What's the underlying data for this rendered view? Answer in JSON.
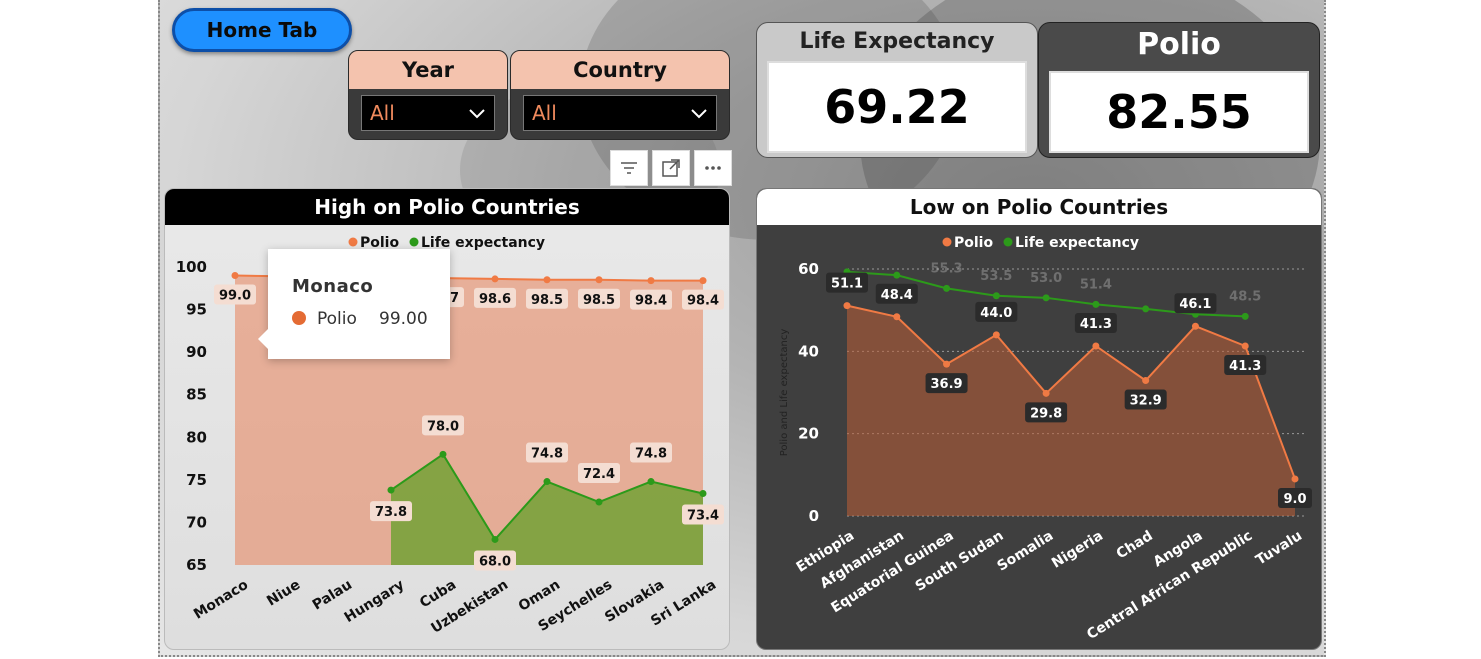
{
  "home_button": "Home Tab",
  "slicers": {
    "year": {
      "label": "Year",
      "value": "All"
    },
    "country": {
      "label": "Country",
      "value": "All"
    }
  },
  "kpis": {
    "life_expectancy": {
      "label": "Life Expectancy",
      "value": "69.22"
    },
    "polio": {
      "label": "Polio",
      "value": "82.55"
    }
  },
  "icons": [
    "filter-icon",
    "focus-mode-icon",
    "more-options-icon"
  ],
  "colors": {
    "polio": "#f07a44",
    "life_expectancy": "#2c9a1a"
  },
  "chart_data": [
    {
      "type": "area",
      "title": "High on Polio Countries",
      "legend": [
        "Polio",
        "Life expectancy"
      ],
      "legend_position": "top-center",
      "categories": [
        "Monaco",
        "Niue",
        "Palau",
        "Hungary",
        "Cuba",
        "Uzbekistan",
        "Oman",
        "Seychelles",
        "Slovakia",
        "Sri Lanka"
      ],
      "series": [
        {
          "name": "Polio",
          "values": [
            99.0,
            98.9,
            98.8,
            98.7,
            98.7,
            98.6,
            98.5,
            98.5,
            98.4,
            98.4
          ]
        },
        {
          "name": "Life expectancy",
          "values": [
            null,
            null,
            null,
            73.8,
            78.0,
            68.0,
            74.8,
            72.4,
            74.8,
            73.4
          ]
        }
      ],
      "data_labels": {
        "polio": [
          "99.0",
          "",
          "",
          "",
          "98.7",
          "98.6",
          "98.5",
          "98.5",
          "98.4",
          "98.4"
        ],
        "life": [
          "",
          "",
          "",
          "73.8",
          "78.0",
          "68.0",
          "74.8",
          "72.4",
          "74.8",
          "73.4"
        ]
      },
      "ylim": [
        65,
        100
      ],
      "yticks": [
        "65",
        "70",
        "75",
        "80",
        "85",
        "90",
        "95",
        "100"
      ],
      "tooltip": {
        "title": "Monaco",
        "series": "Polio",
        "value": "99.00"
      }
    },
    {
      "type": "area",
      "title": "Low on Polio Countries",
      "legend": [
        "Polio",
        "Life expectancy"
      ],
      "legend_position": "top-center",
      "ylabel": "Polio and Life expectancy",
      "categories": [
        "Ethiopia",
        "Afghanistan",
        "Equatorial Guinea",
        "South Sudan",
        "Somalia",
        "Nigeria",
        "Chad",
        "Angola",
        "Central African Republic",
        "Tuvalu"
      ],
      "series": [
        {
          "name": "Polio",
          "values": [
            51.1,
            48.4,
            36.9,
            44.0,
            29.8,
            41.3,
            32.9,
            46.1,
            41.3,
            9.0
          ]
        },
        {
          "name": "Life expectancy",
          "values": [
            59.3,
            58.5,
            55.3,
            53.5,
            53.0,
            51.4,
            50.3,
            49.0,
            48.5,
            null
          ]
        }
      ],
      "data_labels": {
        "polio": [
          "51.1",
          "48.4",
          "36.9",
          "44.0",
          "29.8",
          "41.3",
          "32.9",
          "46.1",
          "41.3",
          "9.0"
        ],
        "life": [
          "",
          "",
          "55.3",
          "53.5",
          "53.0",
          "51.4",
          "",
          "",
          "48.5",
          ""
        ]
      },
      "ylim": [
        0,
        60
      ],
      "yticks": [
        "0",
        "20",
        "40",
        "60"
      ]
    }
  ]
}
